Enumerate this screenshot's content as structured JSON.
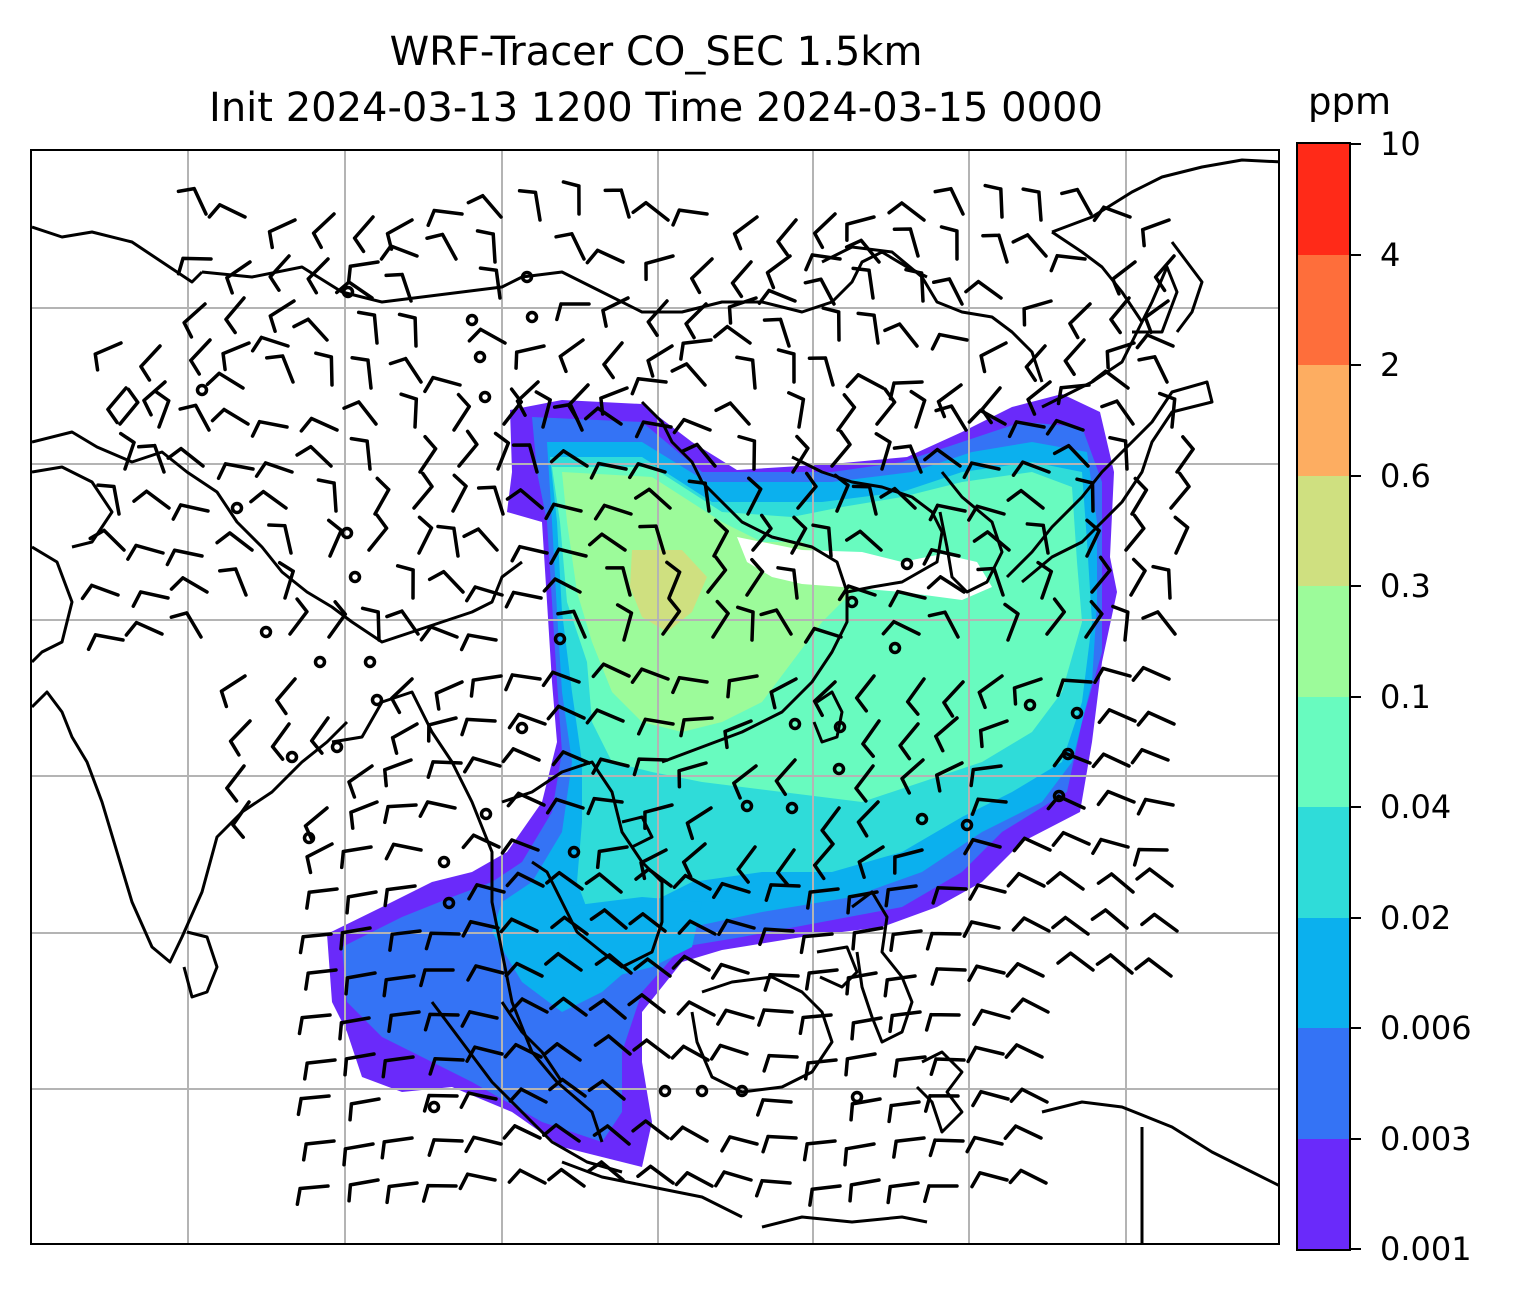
{
  "title": {
    "line1": "WRF-Tracer CO_SEC 1.5km",
    "line2": "Init 2024-03-13 1200 Time 2024-03-15 0000"
  },
  "colorbar": {
    "unit": "ppm",
    "levels": [
      "0.001",
      "0.003",
      "0.006",
      "0.02",
      "0.04",
      "0.1",
      "0.3",
      "0.6",
      "2",
      "4",
      "10"
    ],
    "colors": [
      "#6a2afa",
      "#3473f5",
      "#0bb0ee",
      "#2fdcd9",
      "#68fbbf",
      "#9cfb9a",
      "#cfe080",
      "#fdad61",
      "#fe6e3b",
      "#ff2a18"
    ]
  },
  "map": {
    "gridlines": true,
    "features": [
      "coastlines",
      "country-borders",
      "wind-barbs",
      "tracer-shading"
    ],
    "region": "East and Southeast Asia"
  }
}
